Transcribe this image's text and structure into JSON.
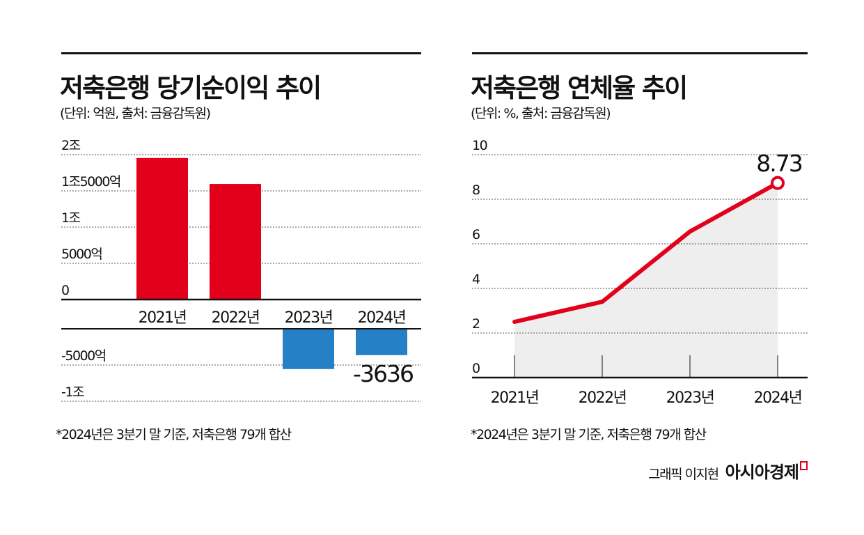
{
  "chart_data": [
    {
      "type": "bar",
      "title": "저축은행 당기순이익 추이",
      "subtitle": "(단위: 억원, 출처: 금융감독원)",
      "categories": [
        "2021년",
        "2022년",
        "2023년",
        "2024년"
      ],
      "values": [
        19534,
        15957,
        -5559,
        -3636
      ],
      "ylim": [
        -10000,
        20000
      ],
      "yticks": [
        {
          "value": 20000,
          "label": "2조"
        },
        {
          "value": 15000,
          "label": "1조5000억"
        },
        {
          "value": 10000,
          "label": "1조"
        },
        {
          "value": 5000,
          "label": "5000억"
        },
        {
          "value": 0,
          "label": "0"
        },
        {
          "value": -5000,
          "label": "-5000억"
        },
        {
          "value": -10000,
          "label": "-1조"
        }
      ],
      "data_labels": [
        {
          "index": 3,
          "text": "-3636"
        }
      ],
      "grid": true,
      "colors": {
        "positive": "#e2001a",
        "negative": "#2680c6"
      },
      "footnote": "*2024년은 3분기 말 기준, 저축은행 79개 합산"
    },
    {
      "type": "area",
      "title": "저축은행 연체율 추이",
      "subtitle": "(단위: %, 출처: 금융감독원)",
      "categories": [
        "2021년",
        "2022년",
        "2023년",
        "2024년"
      ],
      "values": [
        2.5,
        3.4,
        6.55,
        8.73
      ],
      "ylim": [
        0,
        10
      ],
      "yticks": [
        0,
        2,
        4,
        6,
        8,
        10
      ],
      "data_labels": [
        {
          "index": 3,
          "text": "8.73"
        }
      ],
      "grid": true,
      "colors": {
        "line": "#e2001a",
        "fill": "#eeeeee"
      },
      "footnote": "*2024년은 3분기 말 기준, 저축은행 79개 합산"
    }
  ],
  "credit": {
    "author": "그래픽 이지현",
    "brand": "아시아경제"
  }
}
